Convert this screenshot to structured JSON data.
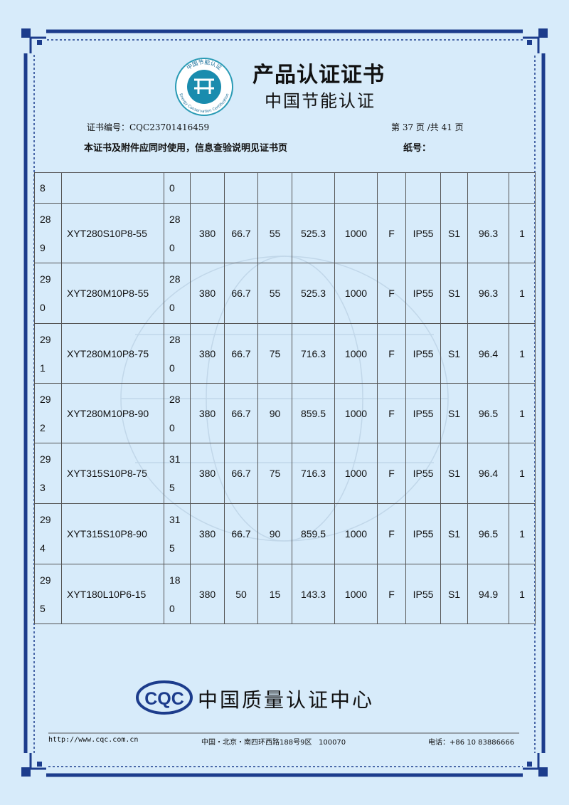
{
  "logo": {
    "ring_top": "中国节能认证",
    "ring_bottom": "Energy Conservation Certification"
  },
  "header": {
    "title": "产品认证证书",
    "subtitle": "中国节能认证"
  },
  "info": {
    "cert_no": "证书编号：CQC23701416459",
    "page": "第 37 页 /共 41 页",
    "note": "本证书及附件应同时使用，信息查验说明见证书页",
    "paper_no": "纸号："
  },
  "table": {
    "rows": [
      [
        "8",
        null,
        "0",
        null,
        null,
        null,
        null,
        null,
        null,
        null,
        null,
        null,
        null
      ],
      [
        "289",
        "XYT280S10P8-55",
        "280",
        "380",
        "66.7",
        "55",
        "525.3",
        "1000",
        "F",
        "IP55",
        "S1",
        "96.3",
        "1"
      ],
      [
        "290",
        "XYT280M10P8-55",
        "280",
        "380",
        "66.7",
        "55",
        "525.3",
        "1000",
        "F",
        "IP55",
        "S1",
        "96.3",
        "1"
      ],
      [
        "291",
        "XYT280M10P8-75",
        "280",
        "380",
        "66.7",
        "75",
        "716.3",
        "1000",
        "F",
        "IP55",
        "S1",
        "96.4",
        "1"
      ],
      [
        "292",
        "XYT280M10P8-90",
        "280",
        "380",
        "66.7",
        "90",
        "859.5",
        "1000",
        "F",
        "IP55",
        "S1",
        "96.5",
        "1"
      ],
      [
        "293",
        "XYT315S10P8-75",
        "315",
        "380",
        "66.7",
        "75",
        "716.3",
        "1000",
        "F",
        "IP55",
        "S1",
        "96.4",
        "1"
      ],
      [
        "294",
        "XYT315S10P8-90",
        "315",
        "380",
        "66.7",
        "90",
        "859.5",
        "1000",
        "F",
        "IP55",
        "S1",
        "96.5",
        "1"
      ],
      [
        "295",
        "XYT180L10P6-15",
        "180",
        "380",
        "50",
        "15",
        "143.3",
        "1000",
        "F",
        "IP55",
        "S1",
        "94.9",
        "1"
      ]
    ]
  },
  "footer": {
    "logo": "CQC",
    "org": "中国质量认证中心",
    "url": "http://www.cqc.com.cn",
    "address": "中国・北京・南四环西路188号9区   100070",
    "phone": "电话：+86 10 83886666"
  }
}
